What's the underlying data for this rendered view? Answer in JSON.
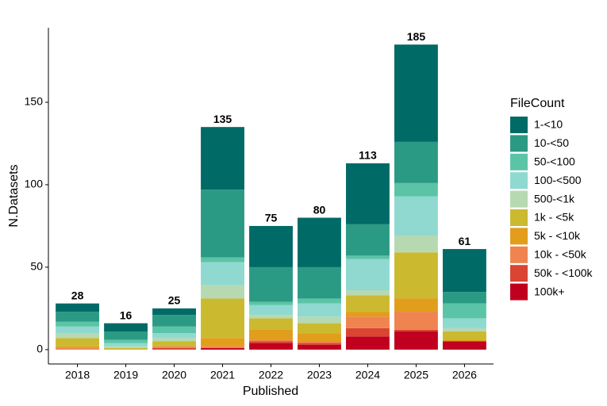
{
  "chart_data": {
    "type": "stacked-bar",
    "x_label": "Published",
    "y_label": "N.Datasets",
    "legend_title": "FileCount",
    "categories": [
      "2018",
      "2019",
      "2020",
      "2021",
      "2022",
      "2023",
      "2024",
      "2025",
      "2026"
    ],
    "totals": [
      28,
      16,
      25,
      135,
      75,
      80,
      113,
      185,
      61
    ],
    "series": [
      {
        "name": "1-<10",
        "color": "#006a67",
        "values": [
          5,
          5,
          4,
          38,
          25,
          30,
          37,
          59,
          26
        ]
      },
      {
        "name": "10-<50",
        "color": "#2b9a84",
        "values": [
          6,
          5,
          7,
          41,
          21,
          19,
          19,
          25,
          7
        ]
      },
      {
        "name": "50-<100",
        "color": "#5cc4a6",
        "values": [
          3,
          2,
          4,
          3,
          2,
          3,
          2,
          8,
          9
        ]
      },
      {
        "name": "100-<500",
        "color": "#8fd9d0",
        "values": [
          4,
          2,
          3,
          14,
          6,
          8,
          19,
          24,
          6
        ]
      },
      {
        "name": "500-<1k",
        "color": "#b6d9b1",
        "values": [
          3,
          1,
          2,
          8,
          2,
          4,
          3,
          10,
          2
        ]
      },
      {
        "name": "1k - <5k",
        "color": "#cbb92f",
        "values": [
          5,
          1,
          3,
          24,
          7,
          6,
          10,
          28,
          5
        ]
      },
      {
        "name": "5k - <10k",
        "color": "#e29d1c",
        "values": [
          1,
          0,
          0,
          5,
          6,
          5,
          3,
          8,
          1
        ]
      },
      {
        "name": "10k - <50k",
        "color": "#ef8450",
        "values": [
          1,
          0,
          1,
          1,
          1,
          1,
          7,
          11,
          0
        ]
      },
      {
        "name": "50k - <100k",
        "color": "#d94532",
        "values": [
          0,
          0,
          1,
          0,
          1,
          1,
          5,
          1,
          0
        ]
      },
      {
        "name": "100k+",
        "color": "#c0001e",
        "values": [
          0,
          0,
          0,
          1,
          4,
          3,
          8,
          11,
          5
        ]
      }
    ],
    "ylim": [
      -8.7,
      195.2
    ],
    "yticks": [
      0,
      50,
      100,
      150
    ]
  }
}
